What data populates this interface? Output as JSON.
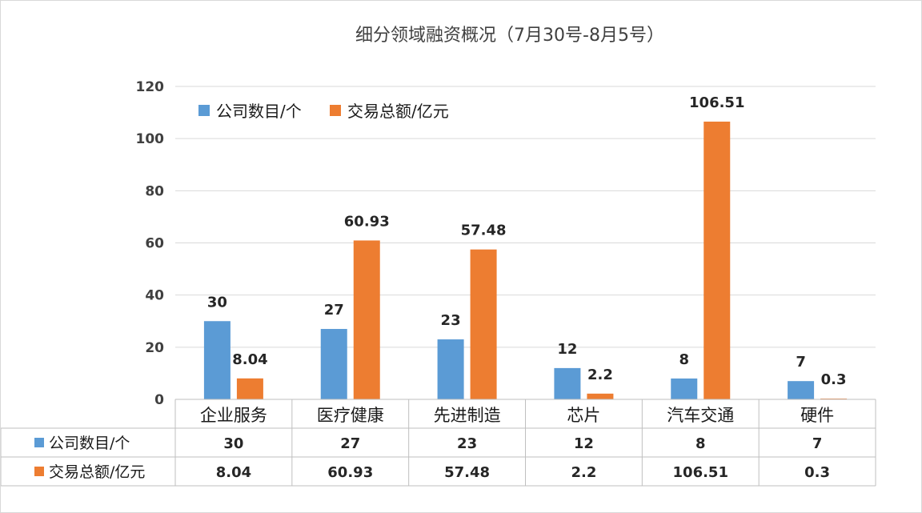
{
  "chart_data": {
    "type": "bar",
    "title": "细分领域融资概况（7月30号-8月5号）",
    "categories": [
      "企业服务",
      "医疗健康",
      "先进制造",
      "芯片",
      "汽车交通",
      "硬件"
    ],
    "series": [
      {
        "name": "公司数目/个",
        "values": [
          30,
          27,
          23,
          12,
          8,
          7
        ],
        "labels": [
          "30",
          "27",
          "23",
          "12",
          "8",
          "7"
        ],
        "color": "#5b9bd5"
      },
      {
        "name": "交易总额/亿元",
        "values": [
          8.04,
          60.93,
          57.48,
          2.2,
          106.51,
          0.3
        ],
        "labels": [
          "8.04",
          "60.93",
          "57.48",
          "2.2",
          "106.51",
          "0.3"
        ],
        "color": "#ed7d31"
      }
    ],
    "ylim": [
      0,
      120
    ],
    "yticks": [
      "0",
      "20",
      "40",
      "60",
      "80",
      "100",
      "120"
    ],
    "grid": true,
    "legend": "top-left",
    "data_table": true
  }
}
